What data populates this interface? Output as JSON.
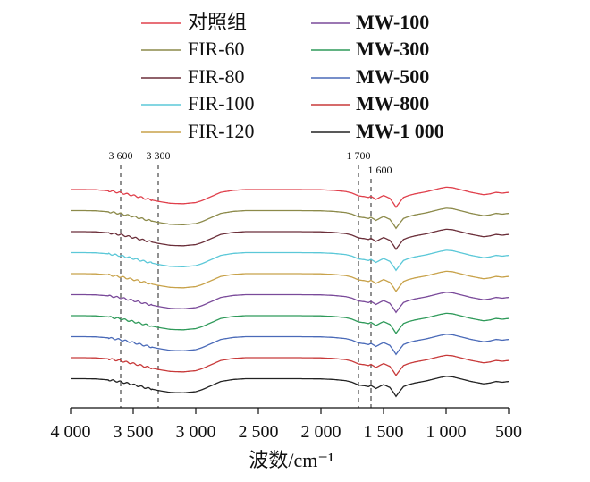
{
  "chart_data": {
    "type": "line",
    "title": "",
    "xlabel": "波数/cm⁻¹",
    "ylabel": "",
    "xlim": [
      4000,
      500
    ],
    "x_reversed": true,
    "y_axis_shown": false,
    "grid": false,
    "legend_placement": "top (two columns)",
    "x_ticks": [
      4000,
      3500,
      3000,
      2500,
      2000,
      1500,
      1000,
      500
    ],
    "x_tick_labels": [
      "4 000",
      "3 500",
      "3 000",
      "2 500",
      "2 000",
      "1 500",
      "1 000",
      "500"
    ],
    "reference_lines": [
      {
        "x": 3600,
        "label": "3 600"
      },
      {
        "x": 3300,
        "label": "3 300"
      },
      {
        "x": 1700,
        "label": "1 700"
      },
      {
        "x": 1600,
        "label": "1 600"
      }
    ],
    "series": [
      {
        "name": "对照组",
        "color": "#e0404c"
      },
      {
        "name": "FIR-60",
        "color": "#8c8a4a"
      },
      {
        "name": "FIR-80",
        "color": "#6b2f3a"
      },
      {
        "name": "FIR-100",
        "color": "#5bc8d8"
      },
      {
        "name": "FIR-120",
        "color": "#c8a24a"
      },
      {
        "name": "MW-100",
        "color": "#7a4a9a"
      },
      {
        "name": "MW-300",
        "color": "#2f9a5a"
      },
      {
        "name": "MW-500",
        "color": "#4a6ab8"
      },
      {
        "name": "MW-800",
        "color": "#c83a3a"
      },
      {
        "name": "MW-1 000",
        "color": "#222222"
      }
    ],
    "spectrum_shape": {
      "x": [
        4000,
        3900,
        3800,
        3700,
        3600,
        3500,
        3400,
        3300,
        3200,
        3100,
        3000,
        2950,
        2900,
        2850,
        2800,
        2700,
        2600,
        2400,
        2200,
        2000,
        1900,
        1800,
        1750,
        1700,
        1650,
        1620,
        1600,
        1560,
        1520,
        1500,
        1450,
        1420,
        1400,
        1370,
        1340,
        1300,
        1250,
        1200,
        1150,
        1100,
        1050,
        1000,
        950,
        900,
        850,
        800,
        750,
        700,
        650,
        600,
        550,
        500
      ],
      "y": [
        0.0,
        0.0,
        0.01,
        0.06,
        0.16,
        0.3,
        0.46,
        0.6,
        0.7,
        0.72,
        0.66,
        0.56,
        0.42,
        0.28,
        0.14,
        0.04,
        0.0,
        0.0,
        0.0,
        0.01,
        0.04,
        0.1,
        0.18,
        0.32,
        0.36,
        0.4,
        0.34,
        0.5,
        0.36,
        0.3,
        0.44,
        0.7,
        0.9,
        0.64,
        0.4,
        0.3,
        0.22,
        0.16,
        0.1,
        0.02,
        -0.06,
        -0.12,
        -0.1,
        -0.02,
        0.06,
        0.14,
        0.2,
        0.26,
        0.22,
        0.14,
        0.18,
        0.14
      ]
    }
  }
}
